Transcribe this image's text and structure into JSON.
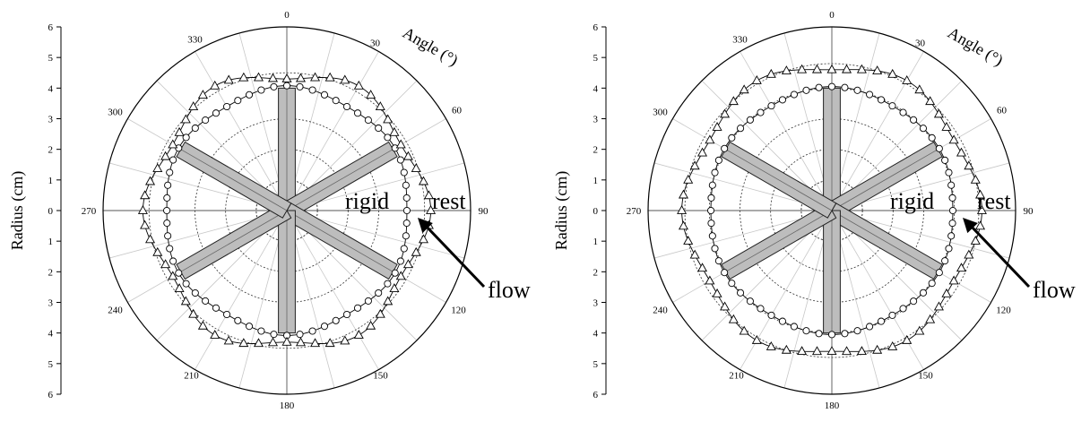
{
  "chart_data": [
    {
      "type": "polar",
      "angular_axis": {
        "title": "Angle (°)",
        "ticks": [
          "0",
          "30",
          "60",
          "90",
          "120",
          "150",
          "180",
          "210",
          "240",
          "270",
          "300",
          "330"
        ],
        "direction": "clockwise",
        "zero": "top",
        "minor_step_deg": 15
      },
      "radial_axis": {
        "title": "Radius (cm)",
        "range": [
          0,
          6
        ],
        "ticks_upper": [
          "6",
          "5",
          "4",
          "3",
          "2",
          "1",
          "0"
        ],
        "ticks_lower": [
          "1",
          "2",
          "3",
          "4",
          "5",
          "6"
        ],
        "grid_circles": [
          1,
          2,
          3,
          4.5
        ]
      },
      "blades": {
        "count": 6,
        "start_deg": 0,
        "length": 4,
        "width": 0.55,
        "hub_radius": 1
      },
      "annotations": {
        "rigid": "rigid",
        "rest": "rest",
        "flow": "flow"
      },
      "series": [
        {
          "marker": "circle",
          "step_deg": 6,
          "radius_avg": 4.0,
          "radius_amp": 0.08
        },
        {
          "marker": "triangle",
          "step_deg": 6,
          "radius_avg": 4.5,
          "radius_amp": 0.2
        }
      ]
    },
    {
      "type": "polar",
      "angular_axis": {
        "title": "Angle (°)",
        "ticks": [
          "0",
          "30",
          "60",
          "90",
          "120",
          "150",
          "180",
          "210",
          "240",
          "270",
          "300",
          "330"
        ],
        "direction": "clockwise",
        "zero": "top",
        "minor_step_deg": 15
      },
      "radial_axis": {
        "title": "Radius (cm)",
        "range": [
          0,
          6
        ],
        "ticks_upper": [
          "6",
          "5",
          "4",
          "3",
          "2",
          "1",
          "0"
        ],
        "ticks_lower": [
          "1",
          "2",
          "3",
          "4",
          "5",
          "6"
        ],
        "grid_circles": [
          1,
          2,
          3,
          4,
          4.8
        ]
      },
      "blades": {
        "count": 6,
        "start_deg": 0,
        "length": 4,
        "width": 0.55,
        "hub_radius": 1
      },
      "annotations": {
        "rigid": "rigid",
        "rest": "rest",
        "flow": "flow"
      },
      "series": [
        {
          "marker": "circle",
          "step_deg": 6,
          "radius_avg": 4.0,
          "radius_amp": 0.05
        },
        {
          "marker": "triangle",
          "step_deg": 6,
          "radius_avg": 4.75,
          "radius_amp": 0.15
        }
      ]
    }
  ]
}
